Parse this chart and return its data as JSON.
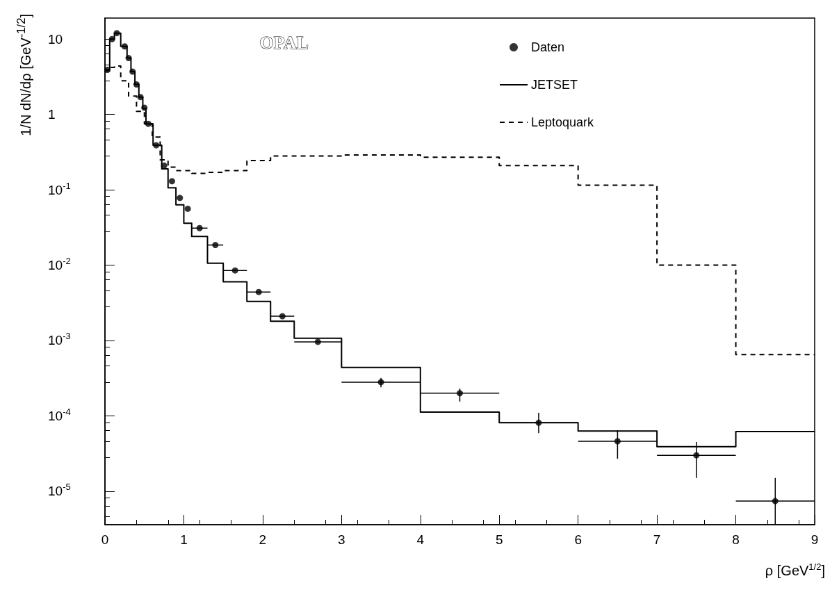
{
  "chart_data": {
    "type": "scatter",
    "xlabel": "ρ [GeV$^{1/2}$]",
    "ylabel": "1/N dN/dρ  [GeV$^{-1/2}$]",
    "annotations": [
      "OPAL"
    ],
    "xlim": [
      0,
      9
    ],
    "xticks": [
      0,
      1,
      2,
      3,
      4,
      5,
      6,
      7,
      8,
      9
    ],
    "ylim": [
      3.6e-06,
      19
    ],
    "yticks": [
      {
        "value": 10,
        "label": "10"
      },
      {
        "value": 1,
        "label": "1"
      },
      {
        "value": 0.1,
        "label": "10$^{-1}$"
      },
      {
        "value": 0.01,
        "label": "10$^{-2}$"
      },
      {
        "value": 0.001,
        "label": "10$^{-3}$"
      },
      {
        "value": 0.0001,
        "label": "10$^{-4}$"
      },
      {
        "value": 1e-05,
        "label": "10$^{-5}$"
      }
    ],
    "log": "y",
    "grid": false,
    "legend": "top right",
    "series": [
      {
        "name": "Daten",
        "color": "#000000",
        "marker": "circle",
        "x": [
          0.03,
          0.09,
          0.15,
          0.25,
          0.3,
          0.35,
          0.4,
          0.45,
          0.5,
          0.55,
          0.65,
          0.75,
          0.85,
          0.95,
          1.05,
          1.2,
          1.4,
          1.65,
          1.95,
          2.25,
          2.7,
          3.5,
          4.5,
          5.5,
          6.5,
          7.5,
          8.5
        ],
        "values": [
          3.9,
          10,
          12,
          8.0,
          5.6,
          3.7,
          2.5,
          1.7,
          1.23,
          0.75,
          0.39,
          0.21,
          0.13,
          0.078,
          0.056,
          0.031,
          0.0185,
          0.0085,
          0.0044,
          0.0021,
          0.00096,
          0.00028,
          0.0002,
          8.1e-05,
          4.6e-05,
          3e-05,
          7.4e-06
        ],
        "errors": [
          null,
          null,
          null,
          null,
          null,
          null,
          null,
          null,
          null,
          null,
          null,
          null,
          null,
          null,
          null,
          null,
          null,
          null,
          null,
          null,
          null,
          [
            0.00024,
            0.00032
          ],
          [
            0.000155,
            0.00023
          ],
          [
            5.9e-05,
            0.00011
          ],
          [
            2.7e-05,
            6.4e-05
          ],
          [
            1.5e-05,
            4.5e-05
          ],
          [
            3.6e-06,
            1.5e-05
          ]
        ],
        "xerrors": [
          null,
          null,
          null,
          null,
          null,
          null,
          null,
          null,
          null,
          null,
          null,
          null,
          null,
          null,
          null,
          0.1,
          0.1,
          0.15,
          0.15,
          0.15,
          0.3,
          0.5,
          0.5,
          0.5,
          0.5,
          0.5,
          0.5
        ]
      },
      {
        "name": "JETSET",
        "type": "histogram",
        "color": "#000000",
        "line_style": "solid",
        "bins": [
          0,
          0.06,
          0.12,
          0.2,
          0.28,
          0.33,
          0.38,
          0.43,
          0.48,
          0.52,
          0.61,
          0.72,
          0.8,
          0.9,
          1.0,
          1.1,
          1.3,
          1.5,
          1.8,
          2.1,
          2.4,
          3,
          4,
          5,
          6,
          7,
          8,
          9
        ],
        "values": [
          3.9,
          10,
          12,
          8.0,
          5.6,
          3.7,
          2.5,
          1.7,
          1.2,
          0.75,
          0.39,
          0.19,
          0.106,
          0.063,
          0.036,
          0.024,
          0.0106,
          0.006,
          0.0033,
          0.0018,
          0.00107,
          0.00044,
          0.000112,
          8.1e-05,
          6.3e-05,
          3.9e-05,
          6.2e-05
        ]
      },
      {
        "name": "Leptoquark",
        "type": "histogram",
        "color": "#000000",
        "line_style": "dashed",
        "bins": [
          0,
          0.06,
          0.12,
          0.2,
          0.3,
          0.4,
          0.5,
          0.6,
          0.7,
          0.8,
          0.9,
          1.1,
          1.3,
          1.5,
          1.8,
          2.1,
          2.4,
          3,
          4,
          5,
          6,
          7,
          8,
          9
        ],
        "values": [
          3.8,
          4.2,
          4.4,
          2.8,
          1.75,
          1.1,
          0.75,
          0.5,
          0.25,
          0.2,
          0.18,
          0.165,
          0.17,
          0.18,
          0.245,
          0.28,
          0.28,
          0.29,
          0.27,
          0.21,
          0.115,
          0.01,
          0.00065
        ]
      }
    ]
  }
}
